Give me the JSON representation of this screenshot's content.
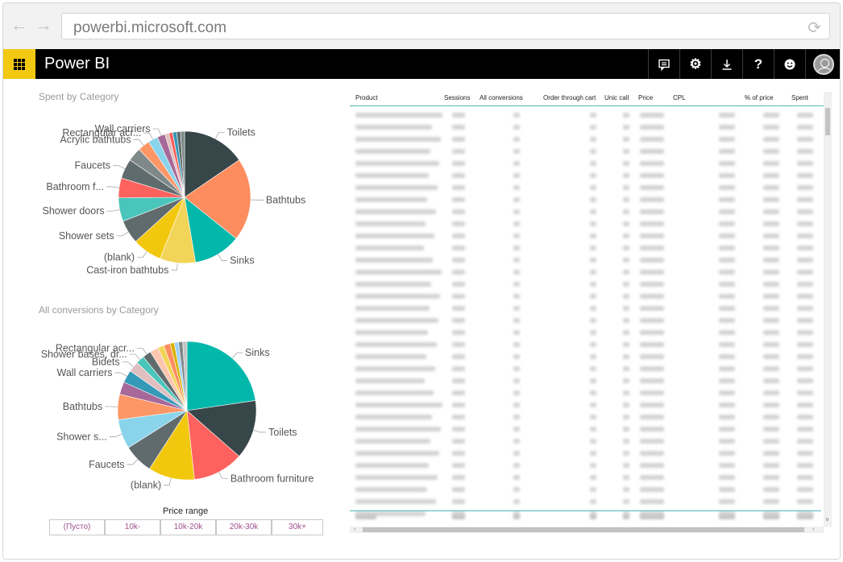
{
  "browser": {
    "url": "powerbi.microsoft.com",
    "back_icon": "arrow-left-icon",
    "forward_icon": "arrow-right-icon",
    "reload_icon": "reload-icon"
  },
  "app": {
    "brand": "Power BI",
    "accent": "#f2c811",
    "toolbar_icons": [
      "comment-icon",
      "gear-icon",
      "download-icon",
      "help-icon",
      "smiley-icon",
      "avatar-icon"
    ],
    "help_glyph": "?"
  },
  "charts": {
    "spent_title": "Spent by Category",
    "conversions_title": "All conversions by Category"
  },
  "chart_data": [
    {
      "type": "pie",
      "title": "Spent by Category",
      "slices": [
        {
          "label": "Toilets",
          "value": 16,
          "color": "#374649"
        },
        {
          "label": "Bathtubs",
          "value": 21,
          "color": "#fd8c5f"
        },
        {
          "label": "Sinks",
          "value": 12,
          "color": "#01b8aa"
        },
        {
          "label": "Cast-iron bathtubs",
          "value": 9,
          "color": "#f2d459"
        },
        {
          "label": "(blank)",
          "value": 7.5,
          "color": "#f2c80f"
        },
        {
          "label": "Shower sets",
          "value": 6,
          "color": "#5f6b6d"
        },
        {
          "label": "Shower doors",
          "value": 6,
          "color": "#4ac5bb"
        },
        {
          "label": "Bathroom f...",
          "value": 5,
          "color": "#fd625e"
        },
        {
          "label": "Faucets",
          "value": 5,
          "color": "#5f6b6d"
        },
        {
          "label": "",
          "value": 3.5,
          "color": "#7f898a"
        },
        {
          "label": "Acrylic bathtubs",
          "value": 3,
          "color": "#fe9666"
        },
        {
          "label": "Rectangular acr...",
          "value": 2.5,
          "color": "#8ad4eb"
        },
        {
          "label": "Wall carriers",
          "value": 2,
          "color": "#a66999"
        },
        {
          "label": "",
          "value": 1,
          "color": "#dfbfbf"
        },
        {
          "label": "",
          "value": 1,
          "color": "#fd625e"
        },
        {
          "label": "",
          "value": 1,
          "color": "#3599b8"
        },
        {
          "label": "",
          "value": 1,
          "color": "#5f6b6d"
        },
        {
          "label": "",
          "value": 1,
          "color": "#7f898a"
        }
      ]
    },
    {
      "type": "pie",
      "title": "All conversions by Category",
      "slices": [
        {
          "label": "Sinks",
          "value": 23,
          "color": "#01b8aa"
        },
        {
          "label": "Toilets",
          "value": 14,
          "color": "#374649"
        },
        {
          "label": "Bathroom furniture",
          "value": 12,
          "color": "#fd625e"
        },
        {
          "label": "(blank)",
          "value": 11,
          "color": "#f2c80f"
        },
        {
          "label": "Faucets",
          "value": 7,
          "color": "#5f6b6d"
        },
        {
          "label": "Shower s...",
          "value": 7,
          "color": "#8ad4eb"
        },
        {
          "label": "Bathtubs",
          "value": 6,
          "color": "#fe9666"
        },
        {
          "label": "",
          "value": 3,
          "color": "#a66999"
        },
        {
          "label": "Wall carriers",
          "value": 3,
          "color": "#3599b8"
        },
        {
          "label": "Bidets",
          "value": 2.5,
          "color": "#dfbfbf"
        },
        {
          "label": "Shower bases, dr...",
          "value": 2,
          "color": "#4ac5bb"
        },
        {
          "label": "Rectangular acr...",
          "value": 2,
          "color": "#5f6b6d"
        },
        {
          "label": "",
          "value": 2,
          "color": "#fbc5b0"
        },
        {
          "label": "",
          "value": 1.5,
          "color": "#f2d459"
        },
        {
          "label": "",
          "value": 1.5,
          "color": "#fd8c5f"
        },
        {
          "label": "",
          "value": 1,
          "color": "#d9b300"
        },
        {
          "label": "",
          "value": 1,
          "color": "#a0d1ff"
        },
        {
          "label": "",
          "value": 1,
          "color": "#7f898a"
        },
        {
          "label": "",
          "value": 1,
          "color": "#c3c3c3"
        }
      ]
    }
  ],
  "slicer": {
    "title": "Price range",
    "options": [
      "(Пусто)",
      "10k-",
      "10k-20k",
      "20k-30k",
      "30k+"
    ]
  },
  "table": {
    "columns": [
      "Product",
      "Sessions",
      "All conversions",
      "Order through cart",
      "Unic call",
      "Price",
      "CPL",
      "% of price",
      "Spent"
    ],
    "row_count": 34,
    "scroll_icons": [
      "chevron-down-icon",
      "chevron-left-icon",
      "chevron-right-icon"
    ]
  }
}
